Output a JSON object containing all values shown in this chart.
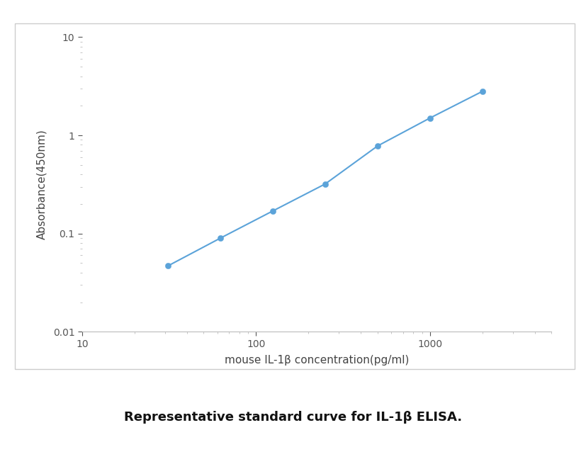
{
  "x_data": [
    31.25,
    62.5,
    125,
    250,
    500,
    1000,
    2000
  ],
  "y_data": [
    0.047,
    0.09,
    0.17,
    0.32,
    0.78,
    1.5,
    2.8
  ],
  "x_label": "mouse IL-1β concentration(pg/ml)",
  "y_label": "Absorbance(450nm)",
  "x_lim": [
    10,
    5000
  ],
  "y_lim": [
    0.01,
    10
  ],
  "line_color": "#5ba3d9",
  "marker_color": "#5ba3d9",
  "marker_size": 6,
  "line_width": 1.5,
  "caption": "Representative standard curve for IL-1β ELISA.",
  "bg_color": "#ffffff",
  "plot_bg_color": "#ffffff",
  "outer_box_color": "#cccccc",
  "axis_spine_color": "#bbbbbb",
  "tick_label_color": "#555555",
  "axis_label_fontsize": 11,
  "caption_fontsize": 13,
  "x_ticks_major": [
    10,
    100,
    1000
  ],
  "y_ticks_major": [
    0.01,
    0.1,
    1,
    10
  ]
}
